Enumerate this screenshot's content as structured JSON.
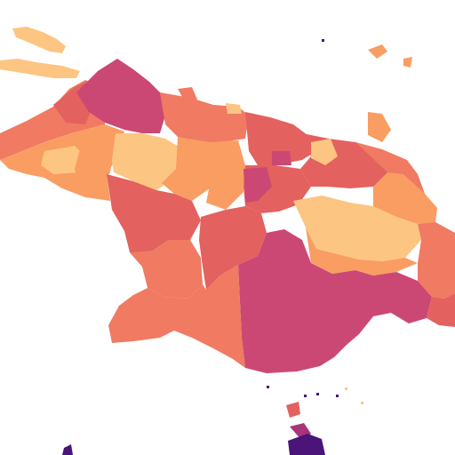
{
  "map": {
    "type": "choropleth",
    "palette": {
      "lightest": "#fdc582",
      "light": "#f99d62",
      "medium": "#f07a62",
      "dark": "#e3615e",
      "darker": "#cc4874",
      "darkest": "#a8347c",
      "deep": "#4a1479"
    },
    "background_color": "#ffffff"
  }
}
